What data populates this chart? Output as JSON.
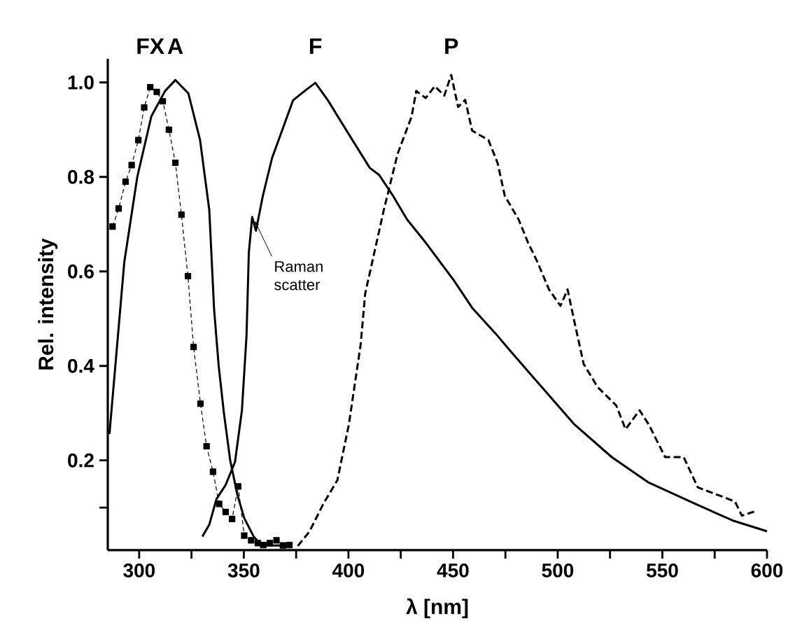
{
  "chart_data": {
    "type": "line",
    "xlabel": "λ [nm]",
    "ylabel": "Rel. intensity",
    "xlim": [
      285,
      600
    ],
    "ylim": [
      0.01,
      1.05
    ],
    "xticks": [
      300,
      {
        "value": 325,
        "label": null
      },
      350,
      {
        "value": 375,
        "label": null
      },
      400,
      {
        "value": 425,
        "label": null
      },
      450,
      {
        "value": 475,
        "label": null
      },
      500,
      {
        "value": 525,
        "label": null
      },
      550,
      {
        "value": 575,
        "label": null
      },
      600
    ],
    "yticks": [
      {
        "value": 0.1,
        "label": null
      },
      {
        "value": 0.2,
        "label": "0.2"
      },
      {
        "value": 0.4,
        "label": "0.4"
      },
      {
        "value": 0.6,
        "label": "0.6"
      },
      {
        "value": 0.8,
        "label": "0.8"
      },
      {
        "value": 1.0,
        "label": "1.0"
      }
    ],
    "annotations": [
      {
        "text": "Raman scatter",
        "x": 354,
        "y": 0.715
      }
    ],
    "series": [
      {
        "name": "FX",
        "color": "#000000",
        "marker": "square",
        "line_style": "dashed",
        "x": [
          287.3,
          290.2,
          293.5,
          296.4,
          299.6,
          302.4,
          305.3,
          308.4,
          311.3,
          314.2,
          317.3,
          320.2,
          323.3,
          326,
          329.3,
          332.2,
          335.3,
          338.2,
          341.3,
          344.4,
          347.3,
          350.2,
          353.5,
          356.7,
          359.3,
          362.4,
          365.6,
          368.7,
          371.8
        ],
        "values": [
          0.695,
          0.733,
          0.79,
          0.825,
          0.878,
          0.947,
          0.99,
          0.98,
          0.96,
          0.9,
          0.83,
          0.72,
          0.59,
          0.44,
          0.32,
          0.23,
          0.176,
          0.108,
          0.091,
          0.076,
          0.145,
          0.041,
          0.031,
          0.025,
          0.021,
          0.025,
          0.031,
          0.02,
          0.021
        ]
      },
      {
        "name": "A",
        "color": "#000000",
        "marker": "none",
        "line_style": "solid",
        "x": [
          285.8,
          292.9,
          299.1,
          305.8,
          312.4,
          317.3,
          323.5,
          329.1,
          333.5,
          335.8,
          338,
          340.5,
          343.5,
          346.9,
          350.2,
          354.7,
          358.7,
          370
        ],
        "values": [
          0.256,
          0.62,
          0.8,
          0.928,
          0.982,
          1.005,
          0.977,
          0.878,
          0.73,
          0.52,
          0.4,
          0.3,
          0.2,
          0.128,
          0.078,
          0.039,
          0.02,
          0.02
        ]
      },
      {
        "name": "F",
        "color": "#000000",
        "marker": "none",
        "line_style": "solid",
        "x": [
          330.2,
          333.5,
          336.9,
          341.3,
          345.8,
          349.1,
          351.3,
          352.4,
          354,
          355.8,
          359.1,
          363.5,
          369.1,
          373.5,
          379.1,
          384.2,
          390.2,
          399.1,
          410.2,
          414.7,
          421.3,
          428,
          436.9,
          450.2,
          459.1,
          470.2,
          476.9,
          492.4,
          508,
          525.8,
          543.5,
          565.8,
          583.5,
          600
        ],
        "values": [
          0.039,
          0.064,
          0.118,
          0.148,
          0.197,
          0.306,
          0.464,
          0.64,
          0.715,
          0.686,
          0.76,
          0.84,
          0.908,
          0.962,
          0.982,
          0.999,
          0.962,
          0.898,
          0.819,
          0.804,
          0.76,
          0.71,
          0.661,
          0.582,
          0.523,
          0.469,
          0.434,
          0.355,
          0.276,
          0.207,
          0.153,
          0.108,
          0.073,
          0.05
        ]
      },
      {
        "name": "P",
        "color": "#000000",
        "marker": "none",
        "line_style": "dashed",
        "x": [
          375.8,
          381.3,
          388,
          394.7,
          400.2,
          405.8,
          408,
          416.9,
          423.5,
          430.2,
          432.4,
          436.9,
          441.3,
          445.8,
          449.1,
          452.4,
          455.8,
          459.1,
          466.9,
          471.3,
          474.7,
          481.3,
          485.8,
          490.2,
          495.8,
          501.3,
          504.7,
          508,
          512.4,
          519.1,
          528,
          532.4,
          539.1,
          543.5,
          551.3,
          560.2,
          566.9,
          575.8,
          584.7,
          588,
          594.7
        ],
        "values": [
          0.019,
          0.049,
          0.108,
          0.158,
          0.276,
          0.444,
          0.553,
          0.73,
          0.849,
          0.928,
          0.982,
          0.967,
          0.992,
          0.972,
          1.016,
          0.948,
          0.963,
          0.898,
          0.878,
          0.829,
          0.76,
          0.71,
          0.661,
          0.621,
          0.562,
          0.527,
          0.562,
          0.493,
          0.404,
          0.355,
          0.316,
          0.266,
          0.306,
          0.276,
          0.207,
          0.207,
          0.143,
          0.128,
          0.113,
          0.083,
          0.093
        ]
      }
    ]
  }
}
